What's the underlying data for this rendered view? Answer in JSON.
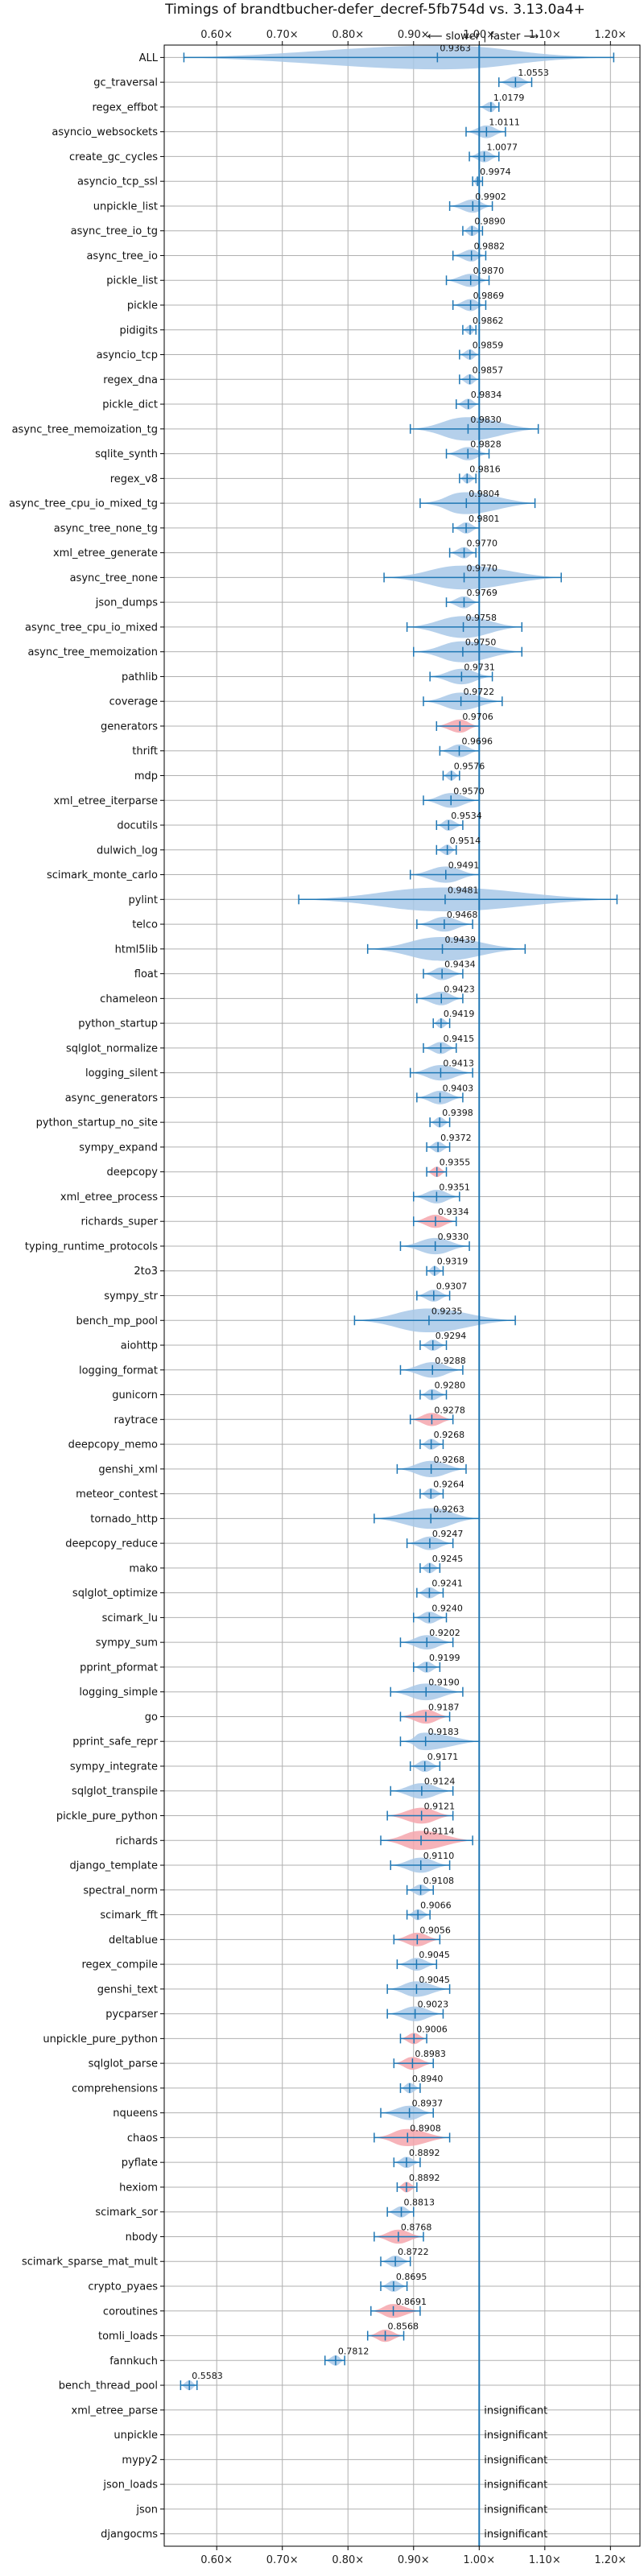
{
  "chart_data": {
    "type": "violin",
    "title": "Timings of brandtbucher-defer_decref-5fb754d vs. 3.13.0a4+",
    "annotation": "⟵ slower | faster ⟶",
    "insignificant_label": "insignificant",
    "x_ticks": [
      "0.60×",
      "0.70×",
      "0.80×",
      "0.90×",
      "1.00×",
      "1.10×",
      "1.20×"
    ],
    "x_tick_values": [
      0.6,
      0.7,
      0.8,
      0.9,
      1.0,
      1.1,
      1.2
    ],
    "xlim": [
      0.52,
      1.245
    ],
    "reference_line": 1.0,
    "grid": true,
    "colors": {
      "faster": "#a8c8e8",
      "slower": "#f4a6ad",
      "marker": "#1f77b4",
      "reference": "#1f77b4"
    },
    "benchmarks": [
      {
        "name": "ALL",
        "value": 0.9363,
        "low": 0.55,
        "high": 1.205,
        "label": "0.9363",
        "color": "faster"
      },
      {
        "name": "gc_traversal",
        "value": 1.0553,
        "low": 1.03,
        "high": 1.08,
        "label": "1.0553",
        "color": "faster"
      },
      {
        "name": "regex_effbot",
        "value": 1.0179,
        "low": 1.0,
        "high": 1.03,
        "label": "1.0179",
        "color": "faster"
      },
      {
        "name": "asyncio_websockets",
        "value": 1.0111,
        "low": 0.98,
        "high": 1.04,
        "label": "1.0111",
        "color": "faster"
      },
      {
        "name": "create_gc_cycles",
        "value": 1.0077,
        "low": 0.985,
        "high": 1.03,
        "label": "1.0077",
        "color": "faster"
      },
      {
        "name": "asyncio_tcp_ssl",
        "value": 0.9974,
        "low": 0.99,
        "high": 1.005,
        "label": "0.9974",
        "color": "faster"
      },
      {
        "name": "unpickle_list",
        "value": 0.9902,
        "low": 0.955,
        "high": 1.02,
        "label": "0.9902",
        "color": "faster"
      },
      {
        "name": "async_tree_io_tg",
        "value": 0.989,
        "low": 0.975,
        "high": 1.005,
        "label": "0.9890",
        "color": "faster"
      },
      {
        "name": "async_tree_io",
        "value": 0.9882,
        "low": 0.96,
        "high": 1.01,
        "label": "0.9882",
        "color": "faster"
      },
      {
        "name": "pickle_list",
        "value": 0.987,
        "low": 0.95,
        "high": 1.015,
        "label": "0.9870",
        "color": "faster"
      },
      {
        "name": "pickle",
        "value": 0.9869,
        "low": 0.96,
        "high": 1.01,
        "label": "0.9869",
        "color": "faster"
      },
      {
        "name": "pidigits",
        "value": 0.9862,
        "low": 0.975,
        "high": 0.995,
        "label": "0.9862",
        "color": "faster"
      },
      {
        "name": "asyncio_tcp",
        "value": 0.9859,
        "low": 0.97,
        "high": 1.0,
        "label": "0.9859",
        "color": "faster"
      },
      {
        "name": "regex_dna",
        "value": 0.9857,
        "low": 0.97,
        "high": 1.0,
        "label": "0.9857",
        "color": "faster"
      },
      {
        "name": "pickle_dict",
        "value": 0.9834,
        "low": 0.965,
        "high": 1.0,
        "label": "0.9834",
        "color": "faster"
      },
      {
        "name": "async_tree_memoization_tg",
        "value": 0.983,
        "low": 0.895,
        "high": 1.09,
        "label": "0.9830",
        "color": "faster"
      },
      {
        "name": "sqlite_synth",
        "value": 0.9828,
        "low": 0.95,
        "high": 1.015,
        "label": "0.9828",
        "color": "faster"
      },
      {
        "name": "regex_v8",
        "value": 0.9816,
        "low": 0.97,
        "high": 0.995,
        "label": "0.9816",
        "color": "faster"
      },
      {
        "name": "async_tree_cpu_io_mixed_tg",
        "value": 0.9804,
        "low": 0.91,
        "high": 1.085,
        "label": "0.9804",
        "color": "faster"
      },
      {
        "name": "async_tree_none_tg",
        "value": 0.9801,
        "low": 0.96,
        "high": 1.0,
        "label": "0.9801",
        "color": "faster"
      },
      {
        "name": "xml_etree_generate",
        "value": 0.977,
        "low": 0.955,
        "high": 0.995,
        "label": "0.9770",
        "color": "faster"
      },
      {
        "name": "async_tree_none",
        "value": 0.977,
        "low": 0.855,
        "high": 1.125,
        "label": "0.9770",
        "color": "faster"
      },
      {
        "name": "json_dumps",
        "value": 0.9769,
        "low": 0.95,
        "high": 1.0,
        "label": "0.9769",
        "color": "faster"
      },
      {
        "name": "async_tree_cpu_io_mixed",
        "value": 0.9758,
        "low": 0.89,
        "high": 1.065,
        "label": "0.9758",
        "color": "faster"
      },
      {
        "name": "async_tree_memoization",
        "value": 0.975,
        "low": 0.9,
        "high": 1.065,
        "label": "0.9750",
        "color": "faster"
      },
      {
        "name": "pathlib",
        "value": 0.9731,
        "low": 0.925,
        "high": 1.02,
        "label": "0.9731",
        "color": "faster"
      },
      {
        "name": "coverage",
        "value": 0.9722,
        "low": 0.915,
        "high": 1.035,
        "label": "0.9722",
        "color": "faster"
      },
      {
        "name": "generators",
        "value": 0.9706,
        "low": 0.935,
        "high": 1.0,
        "label": "0.9706",
        "color": "slower"
      },
      {
        "name": "thrift",
        "value": 0.9696,
        "low": 0.94,
        "high": 1.0,
        "label": "0.9696",
        "color": "faster"
      },
      {
        "name": "mdp",
        "value": 0.9576,
        "low": 0.945,
        "high": 0.97,
        "label": "0.9576",
        "color": "faster"
      },
      {
        "name": "xml_etree_iterparse",
        "value": 0.957,
        "low": 0.915,
        "high": 1.0,
        "label": "0.9570",
        "color": "faster"
      },
      {
        "name": "docutils",
        "value": 0.9534,
        "low": 0.935,
        "high": 0.975,
        "label": "0.9534",
        "color": "faster"
      },
      {
        "name": "dulwich_log",
        "value": 0.9514,
        "low": 0.935,
        "high": 0.965,
        "label": "0.9514",
        "color": "faster"
      },
      {
        "name": "scimark_monte_carlo",
        "value": 0.9491,
        "low": 0.895,
        "high": 1.0,
        "label": "0.9491",
        "color": "faster"
      },
      {
        "name": "pylint",
        "value": 0.9481,
        "low": 0.725,
        "high": 1.21,
        "label": "0.9481",
        "color": "faster"
      },
      {
        "name": "telco",
        "value": 0.9468,
        "low": 0.905,
        "high": 0.99,
        "label": "0.9468",
        "color": "faster"
      },
      {
        "name": "html5lib",
        "value": 0.9439,
        "low": 0.83,
        "high": 1.07,
        "label": "0.9439",
        "color": "faster"
      },
      {
        "name": "float",
        "value": 0.9434,
        "low": 0.915,
        "high": 0.975,
        "label": "0.9434",
        "color": "faster"
      },
      {
        "name": "chameleon",
        "value": 0.9423,
        "low": 0.905,
        "high": 0.975,
        "label": "0.9423",
        "color": "faster"
      },
      {
        "name": "python_startup",
        "value": 0.9419,
        "low": 0.93,
        "high": 0.955,
        "label": "0.9419",
        "color": "faster"
      },
      {
        "name": "sqlglot_normalize",
        "value": 0.9415,
        "low": 0.915,
        "high": 0.965,
        "label": "0.9415",
        "color": "faster"
      },
      {
        "name": "logging_silent",
        "value": 0.9413,
        "low": 0.895,
        "high": 0.99,
        "label": "0.9413",
        "color": "faster"
      },
      {
        "name": "async_generators",
        "value": 0.9403,
        "low": 0.905,
        "high": 0.975,
        "label": "0.9403",
        "color": "faster"
      },
      {
        "name": "python_startup_no_site",
        "value": 0.9398,
        "low": 0.925,
        "high": 0.955,
        "label": "0.9398",
        "color": "faster"
      },
      {
        "name": "sympy_expand",
        "value": 0.9372,
        "low": 0.92,
        "high": 0.955,
        "label": "0.9372",
        "color": "faster"
      },
      {
        "name": "deepcopy",
        "value": 0.9355,
        "low": 0.92,
        "high": 0.95,
        "label": "0.9355",
        "color": "slower"
      },
      {
        "name": "xml_etree_process",
        "value": 0.9351,
        "low": 0.9,
        "high": 0.97,
        "label": "0.9351",
        "color": "faster"
      },
      {
        "name": "richards_super",
        "value": 0.9334,
        "low": 0.9,
        "high": 0.965,
        "label": "0.9334",
        "color": "slower"
      },
      {
        "name": "typing_runtime_protocols",
        "value": 0.933,
        "low": 0.88,
        "high": 0.985,
        "label": "0.9330",
        "color": "faster"
      },
      {
        "name": "2to3",
        "value": 0.9319,
        "low": 0.92,
        "high": 0.945,
        "label": "0.9319",
        "color": "faster"
      },
      {
        "name": "sympy_str",
        "value": 0.9307,
        "low": 0.905,
        "high": 0.955,
        "label": "0.9307",
        "color": "faster"
      },
      {
        "name": "bench_mp_pool",
        "value": 0.9235,
        "low": 0.81,
        "high": 1.055,
        "label": "0.9235",
        "color": "faster"
      },
      {
        "name": "aiohttp",
        "value": 0.9294,
        "low": 0.91,
        "high": 0.95,
        "label": "0.9294",
        "color": "faster"
      },
      {
        "name": "logging_format",
        "value": 0.9288,
        "low": 0.88,
        "high": 0.975,
        "label": "0.9288",
        "color": "faster"
      },
      {
        "name": "gunicorn",
        "value": 0.928,
        "low": 0.91,
        "high": 0.95,
        "label": "0.9280",
        "color": "faster"
      },
      {
        "name": "raytrace",
        "value": 0.9278,
        "low": 0.895,
        "high": 0.96,
        "label": "0.9278",
        "color": "slower"
      },
      {
        "name": "deepcopy_memo",
        "value": 0.9268,
        "low": 0.91,
        "high": 0.945,
        "label": "0.9268",
        "color": "faster"
      },
      {
        "name": "genshi_xml",
        "value": 0.9268,
        "low": 0.875,
        "high": 0.98,
        "label": "0.9268",
        "color": "faster"
      },
      {
        "name": "meteor_contest",
        "value": 0.9264,
        "low": 0.91,
        "high": 0.945,
        "label": "0.9264",
        "color": "faster"
      },
      {
        "name": "tornado_http",
        "value": 0.9263,
        "low": 0.84,
        "high": 1.0,
        "label": "0.9263",
        "color": "faster"
      },
      {
        "name": "deepcopy_reduce",
        "value": 0.9247,
        "low": 0.89,
        "high": 0.96,
        "label": "0.9247",
        "color": "faster"
      },
      {
        "name": "mako",
        "value": 0.9245,
        "low": 0.91,
        "high": 0.94,
        "label": "0.9245",
        "color": "faster"
      },
      {
        "name": "sqlglot_optimize",
        "value": 0.9241,
        "low": 0.905,
        "high": 0.945,
        "label": "0.9241",
        "color": "faster"
      },
      {
        "name": "scimark_lu",
        "value": 0.924,
        "low": 0.9,
        "high": 0.95,
        "label": "0.9240",
        "color": "faster"
      },
      {
        "name": "sympy_sum",
        "value": 0.9202,
        "low": 0.88,
        "high": 0.96,
        "label": "0.9202",
        "color": "faster"
      },
      {
        "name": "pprint_pformat",
        "value": 0.9199,
        "low": 0.9,
        "high": 0.94,
        "label": "0.9199",
        "color": "faster"
      },
      {
        "name": "logging_simple",
        "value": 0.919,
        "low": 0.865,
        "high": 0.975,
        "label": "0.9190",
        "color": "faster"
      },
      {
        "name": "go",
        "value": 0.9187,
        "low": 0.88,
        "high": 0.955,
        "label": "0.9187",
        "color": "slower"
      },
      {
        "name": "pprint_safe_repr",
        "value": 0.9183,
        "low": 0.88,
        "high": 1.0,
        "label": "0.9183",
        "color": "faster"
      },
      {
        "name": "sympy_integrate",
        "value": 0.9171,
        "low": 0.895,
        "high": 0.94,
        "label": "0.9171",
        "color": "faster"
      },
      {
        "name": "sqlglot_transpile",
        "value": 0.9124,
        "low": 0.865,
        "high": 0.96,
        "label": "0.9124",
        "color": "faster"
      },
      {
        "name": "pickle_pure_python",
        "value": 0.9121,
        "low": 0.86,
        "high": 0.96,
        "label": "0.9121",
        "color": "slower"
      },
      {
        "name": "richards",
        "value": 0.9114,
        "low": 0.85,
        "high": 0.99,
        "label": "0.9114",
        "color": "slower"
      },
      {
        "name": "django_template",
        "value": 0.911,
        "low": 0.865,
        "high": 0.955,
        "label": "0.9110",
        "color": "faster"
      },
      {
        "name": "spectral_norm",
        "value": 0.9108,
        "low": 0.89,
        "high": 0.93,
        "label": "0.9108",
        "color": "faster"
      },
      {
        "name": "scimark_fft",
        "value": 0.9066,
        "low": 0.89,
        "high": 0.925,
        "label": "0.9066",
        "color": "faster"
      },
      {
        "name": "deltablue",
        "value": 0.9056,
        "low": 0.87,
        "high": 0.94,
        "label": "0.9056",
        "color": "slower"
      },
      {
        "name": "regex_compile",
        "value": 0.9045,
        "low": 0.875,
        "high": 0.935,
        "label": "0.9045",
        "color": "faster"
      },
      {
        "name": "genshi_text",
        "value": 0.9045,
        "low": 0.86,
        "high": 0.955,
        "label": "0.9045",
        "color": "faster"
      },
      {
        "name": "pycparser",
        "value": 0.9023,
        "low": 0.86,
        "high": 0.945,
        "label": "0.9023",
        "color": "faster"
      },
      {
        "name": "unpickle_pure_python",
        "value": 0.9006,
        "low": 0.88,
        "high": 0.92,
        "label": "0.9006",
        "color": "slower"
      },
      {
        "name": "sqlglot_parse",
        "value": 0.8983,
        "low": 0.87,
        "high": 0.93,
        "label": "0.8983",
        "color": "slower"
      },
      {
        "name": "comprehensions",
        "value": 0.894,
        "low": 0.88,
        "high": 0.91,
        "label": "0.8940",
        "color": "faster"
      },
      {
        "name": "nqueens",
        "value": 0.8937,
        "low": 0.85,
        "high": 0.93,
        "label": "0.8937",
        "color": "faster"
      },
      {
        "name": "chaos",
        "value": 0.8908,
        "low": 0.84,
        "high": 0.955,
        "label": "0.8908",
        "color": "slower"
      },
      {
        "name": "pyflate",
        "value": 0.8892,
        "low": 0.87,
        "high": 0.91,
        "label": "0.8892",
        "color": "faster"
      },
      {
        "name": "hexiom",
        "value": 0.8892,
        "low": 0.875,
        "high": 0.905,
        "label": "0.8892",
        "color": "slower"
      },
      {
        "name": "scimark_sor",
        "value": 0.8813,
        "low": 0.86,
        "high": 0.9,
        "label": "0.8813",
        "color": "faster"
      },
      {
        "name": "nbody",
        "value": 0.8768,
        "low": 0.84,
        "high": 0.915,
        "label": "0.8768",
        "color": "slower"
      },
      {
        "name": "scimark_sparse_mat_mult",
        "value": 0.8722,
        "low": 0.85,
        "high": 0.895,
        "label": "0.8722",
        "color": "faster"
      },
      {
        "name": "crypto_pyaes",
        "value": 0.8695,
        "low": 0.85,
        "high": 0.89,
        "label": "0.8695",
        "color": "faster"
      },
      {
        "name": "coroutines",
        "value": 0.8691,
        "low": 0.835,
        "high": 0.91,
        "label": "0.8691",
        "color": "slower"
      },
      {
        "name": "tomli_loads",
        "value": 0.8568,
        "low": 0.83,
        "high": 0.885,
        "label": "0.8568",
        "color": "slower"
      },
      {
        "name": "fannkuch",
        "value": 0.7812,
        "low": 0.765,
        "high": 0.795,
        "label": "0.7812",
        "color": "faster"
      },
      {
        "name": "bench_thread_pool",
        "value": 0.5583,
        "low": 0.545,
        "high": 0.57,
        "label": "0.5583",
        "color": "faster"
      },
      {
        "name": "xml_etree_parse",
        "value": null,
        "label": "insignificant"
      },
      {
        "name": "unpickle",
        "value": null,
        "label": "insignificant"
      },
      {
        "name": "mypy2",
        "value": null,
        "label": "insignificant"
      },
      {
        "name": "json_loads",
        "value": null,
        "label": "insignificant"
      },
      {
        "name": "json",
        "value": null,
        "label": "insignificant"
      },
      {
        "name": "djangocms",
        "value": null,
        "label": "insignificant"
      }
    ]
  }
}
